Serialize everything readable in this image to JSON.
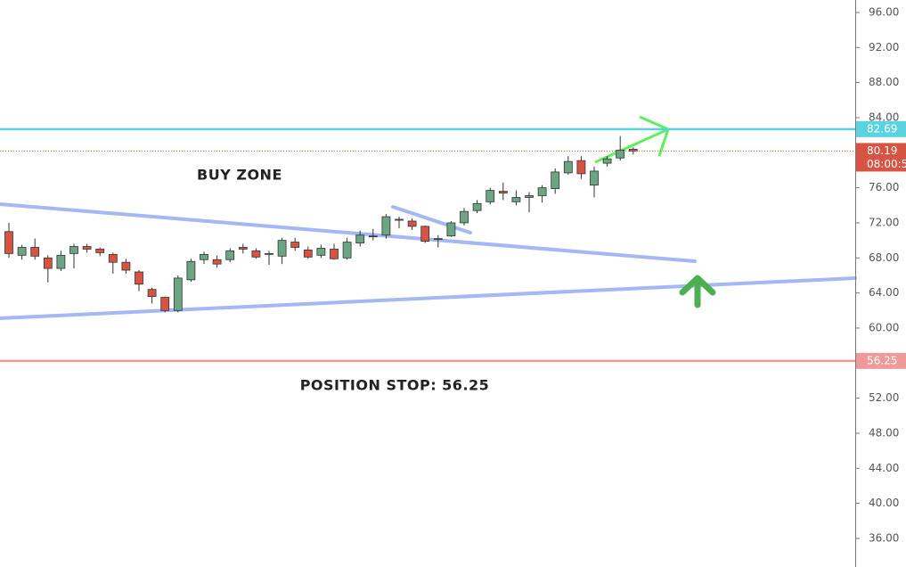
{
  "chart_data": {
    "type": "candlestick",
    "open": [
      71,
      68.3,
      69.2,
      68,
      66.8,
      68.5,
      69.3,
      69,
      68.4,
      67.5,
      66.4,
      64.4,
      63.5,
      62,
      65.5,
      67.8,
      67.8,
      67.8,
      69.2,
      68.8,
      68.4,
      68.2,
      69.8,
      68.9,
      68.3,
      69,
      68,
      69.7,
      70.5,
      70.6,
      72.4,
      72.2,
      71.6,
      70.2,
      70.5,
      72,
      73.4,
      74.4,
      75.6,
      74.4,
      74.9,
      75.1,
      75.9,
      77.7,
      79.1,
      76.3,
      78.8,
      79.4,
      80.4
    ],
    "high": [
      72,
      69.5,
      70.2,
      68.3,
      68.8,
      69.6,
      69.6,
      69.2,
      68.6,
      67.9,
      66.6,
      64.6,
      63.6,
      66,
      67.9,
      68.7,
      68.3,
      69.1,
      69.6,
      69.1,
      68.8,
      70.3,
      70.3,
      69.3,
      69.5,
      69.6,
      70.3,
      71.1,
      71.3,
      73,
      72.7,
      72.5,
      71.7,
      70.6,
      72.2,
      73.7,
      74.6,
      76,
      76.6,
      75.7,
      75.5,
      76.3,
      78.2,
      79.6,
      79.6,
      78.4,
      79.6,
      81.9,
      80.6
    ],
    "low": [
      68,
      67.8,
      67.8,
      65.2,
      66.5,
      66.8,
      68.6,
      68.2,
      66.2,
      66.2,
      64.2,
      62.8,
      61.8,
      61.8,
      65.3,
      67.3,
      66.9,
      67.5,
      68.5,
      67.9,
      67.2,
      67.3,
      68.8,
      67.9,
      68,
      67.8,
      67.8,
      69.3,
      70,
      70.2,
      71.4,
      71.2,
      69.7,
      69.2,
      70.4,
      71.7,
      73.1,
      74.1,
      74.6,
      74,
      73.2,
      74.3,
      75.3,
      77.5,
      77,
      74.9,
      78.4,
      79.1,
      79.8
    ],
    "close": [
      68.5,
      69.2,
      68.2,
      66.8,
      68.3,
      69.3,
      69,
      68.6,
      67.5,
      66.6,
      65,
      63.6,
      62,
      65.7,
      67.6,
      68.4,
      67.3,
      68.8,
      69,
      68.1,
      68.5,
      70,
      69.2,
      68.1,
      69.1,
      67.9,
      69.8,
      70.6,
      70.4,
      72.7,
      72.3,
      71.6,
      69.9,
      70.1,
      72,
      73.3,
      74.2,
      75.7,
      75.4,
      74.9,
      75.1,
      76,
      77.8,
      79,
      77.6,
      77.9,
      79.3,
      80.3,
      80.19
    ],
    "up_color": "#6ba583",
    "down_color": "#d75442",
    "ylim": [
      32.74,
      97.42
    ],
    "yticks": [
      {
        "value": 36,
        "label": "36.00"
      },
      {
        "value": 40,
        "label": "40.00"
      },
      {
        "value": 44,
        "label": "44.00"
      },
      {
        "value": 48,
        "label": "48.00"
      },
      {
        "value": 52,
        "label": "52.00"
      },
      {
        "value": 56,
        "label": "56.00"
      },
      {
        "value": 60,
        "label": "60.00"
      },
      {
        "value": 64,
        "label": "64.00"
      },
      {
        "value": 68,
        "label": "68.00"
      },
      {
        "value": 72,
        "label": "72.00"
      },
      {
        "value": 76,
        "label": "76.00"
      },
      {
        "value": 80,
        "label": "80.00"
      },
      {
        "value": 84,
        "label": "84.00"
      },
      {
        "value": 88,
        "label": "88.00"
      },
      {
        "value": 92,
        "label": "92.00"
      },
      {
        "value": 96,
        "label": "96.00"
      }
    ],
    "levels": [
      {
        "value": 82.69,
        "color": "#5ad3e0",
        "style": "solid"
      },
      {
        "value": 80.19,
        "color": "#d75442",
        "style": "dotted",
        "countdown": "08:00:5"
      },
      {
        "value": 56.25,
        "color": "#ef9a9a",
        "style": "solid"
      }
    ],
    "annotations": [
      "BUY ZONE",
      "POSITION STOP: 56.25"
    ]
  }
}
